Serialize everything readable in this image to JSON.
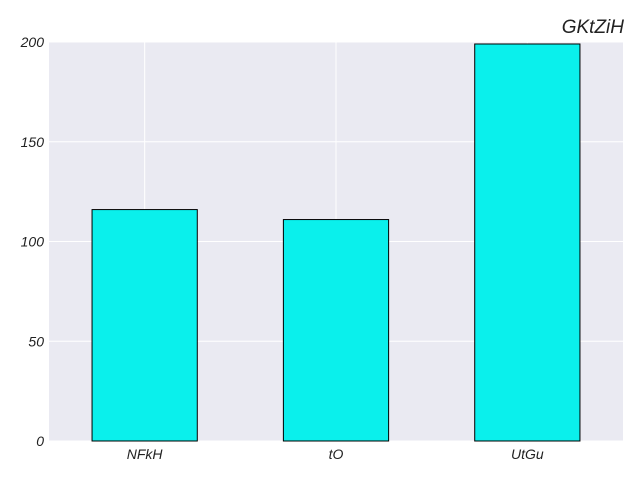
{
  "chart_data": {
    "type": "bar",
    "title": "GKtZiH",
    "xlabel": "",
    "ylabel": "",
    "categories": [
      "NFkH",
      "tO",
      "UtGu"
    ],
    "values": [
      116,
      111,
      199
    ],
    "ylim": [
      0,
      200
    ],
    "yticks": [
      0,
      50,
      100,
      150,
      200
    ],
    "grid": true,
    "legend": "none",
    "colors": {
      "bar_fill": "#0af0ec",
      "bar_edge": "#000000",
      "plot_background": "#eaeaf2",
      "grid": "#ffffff"
    }
  }
}
